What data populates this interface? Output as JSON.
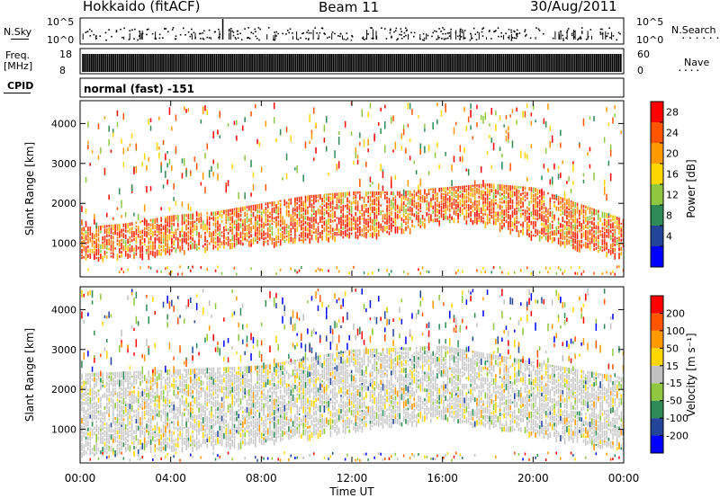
{
  "header": {
    "radar": "Hokkaido (fitACF)",
    "beam": "Beam 11",
    "date": "30/Aug/2011"
  },
  "strips": {
    "nsky_label": "N.Sky",
    "nsearch_label": "N.Search",
    "freq_label_line1": "Freq.",
    "freq_label_line2": "[MHz]",
    "nave_label": "Nave",
    "cpid_label": "CPID",
    "noise_ticks_left": [
      "10^5",
      "10^0"
    ],
    "noise_ticks_right": [
      "10^5",
      "10^0"
    ],
    "freq_ticks": [
      "18",
      "8"
    ],
    "nave_ticks": [
      "60",
      "0"
    ],
    "cpid_text": "normal (fast) -151"
  },
  "chart_data": [
    {
      "type": "heatmap",
      "name": "power",
      "ylabel": "Slant Range [km]",
      "xlabel": "",
      "ylim": [
        180,
        4550
      ],
      "xlim_hours": [
        0,
        24
      ],
      "yticks": [
        "1000",
        "2000",
        "3000",
        "4000"
      ],
      "colorbar": {
        "label": "Power [dB]",
        "ticks": [
          "28",
          "24",
          "20",
          "16",
          "12",
          "8",
          "4"
        ],
        "colors": [
          "#0000ff",
          "#224499",
          "#2e8b57",
          "#8fc840",
          "#ffd700",
          "#ff9900",
          "#ff5500",
          "#ff0000"
        ]
      },
      "band": [
        {
          "h": 0,
          "lo": 600,
          "hi": 1400
        },
        {
          "h": 2,
          "lo": 700,
          "hi": 1500
        },
        {
          "h": 4,
          "lo": 800,
          "hi": 1700
        },
        {
          "h": 6,
          "lo": 900,
          "hi": 1800
        },
        {
          "h": 8,
          "lo": 1000,
          "hi": 2000
        },
        {
          "h": 10,
          "lo": 1100,
          "hi": 2200
        },
        {
          "h": 12,
          "lo": 1200,
          "hi": 2300
        },
        {
          "h": 14,
          "lo": 1300,
          "hi": 2300
        },
        {
          "h": 16,
          "lo": 1600,
          "hi": 2400
        },
        {
          "h": 18,
          "lo": 1500,
          "hi": 2500
        },
        {
          "h": 20,
          "lo": 1200,
          "hi": 2400
        },
        {
          "h": 22,
          "lo": 900,
          "hi": 2000
        },
        {
          "h": 24,
          "lo": 700,
          "hi": 1600
        }
      ]
    },
    {
      "type": "heatmap",
      "name": "velocity",
      "ylabel": "Slant Range [km]",
      "xlabel": "Time UT",
      "ylim": [
        180,
        4550
      ],
      "xlim_hours": [
        0,
        24
      ],
      "yticks": [
        "1000",
        "2000",
        "3000",
        "4000"
      ],
      "xticks": [
        "00:00",
        "04:00",
        "08:00",
        "12:00",
        "16:00",
        "20:00",
        "00:00"
      ],
      "colorbar": {
        "label": "Velocity [m s⁻¹]",
        "ticks": [
          "200",
          "100",
          "50",
          "15",
          "-15",
          "-50",
          "-100",
          "-200"
        ],
        "colors": [
          "#0000ff",
          "#224499",
          "#2e8b57",
          "#8fc840",
          "#c0c0c0",
          "#ffd700",
          "#ff9900",
          "#ff5500",
          "#ff0000"
        ]
      },
      "band": [
        {
          "h": 0,
          "lo": 400,
          "hi": 2400
        },
        {
          "h": 4,
          "lo": 500,
          "hi": 2500
        },
        {
          "h": 8,
          "lo": 700,
          "hi": 2600
        },
        {
          "h": 12,
          "lo": 1000,
          "hi": 3000
        },
        {
          "h": 16,
          "lo": 1300,
          "hi": 3100
        },
        {
          "h": 20,
          "lo": 900,
          "hi": 2700
        },
        {
          "h": 24,
          "lo": 500,
          "hi": 2300
        }
      ]
    }
  ]
}
